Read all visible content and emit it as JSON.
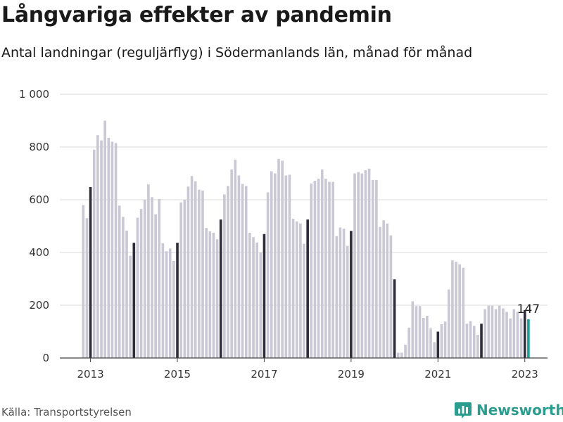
{
  "title": "Långvariga effekter av pandemin",
  "subtitle": "Antal landningar (reguljärflyg) i Södermanlands län, månad för månad",
  "source": "Källa: Transportstyrelsen",
  "brand": {
    "name": "Newsworthy",
    "icon": "newsworthy-logo-icon",
    "color": "#2a9d8f"
  },
  "colors": {
    "bar": "#c9c8d4",
    "january": "#2e2d39",
    "latest": "#18a199",
    "grid": "#d9d9d9",
    "axis": "#444444"
  },
  "chart_data": {
    "type": "bar",
    "title": "Långvariga effekter av pandemin",
    "subtitle": "Antal landningar (reguljärflyg) i Södermanlands län, månad för månad",
    "xlabel": "",
    "ylabel": "",
    "ylim": [
      0,
      1000
    ],
    "yticks": [
      0,
      200,
      400,
      600,
      800,
      1000
    ],
    "ytick_labels": [
      "0",
      "200",
      "400",
      "600",
      "800",
      "1 000"
    ],
    "xticks": [
      "2013",
      "2015",
      "2017",
      "2019",
      "2021",
      "2023"
    ],
    "start": "2012-11",
    "end": "2023-02",
    "grid": true,
    "highlight": "January of each year in dark color; latest month in teal",
    "callout": {
      "month": "2023-02",
      "label": "147"
    },
    "values": [
      580,
      530,
      648,
      790,
      845,
      825,
      900,
      835,
      820,
      815,
      578,
      535,
      483,
      388,
      437,
      532,
      565,
      600,
      658,
      610,
      545,
      603,
      435,
      405,
      415,
      368,
      437,
      590,
      600,
      650,
      690,
      670,
      638,
      635,
      493,
      480,
      475,
      450,
      525,
      620,
      652,
      715,
      752,
      692,
      660,
      652,
      475,
      458,
      438,
      400,
      470,
      628,
      708,
      700,
      755,
      748,
      692,
      695,
      528,
      518,
      510,
      433,
      525,
      662,
      672,
      680,
      715,
      680,
      668,
      668,
      462,
      495,
      490,
      425,
      482,
      700,
      705,
      700,
      712,
      718,
      675,
      675,
      497,
      522,
      510,
      465,
      298,
      20,
      20,
      50,
      115,
      215,
      197,
      197,
      152,
      160,
      112,
      60,
      100,
      128,
      138,
      260,
      370,
      365,
      355,
      342,
      130,
      140,
      122,
      88,
      130,
      185,
      198,
      198,
      185,
      198,
      188,
      175,
      150,
      185,
      175,
      150,
      182,
      147
    ]
  }
}
